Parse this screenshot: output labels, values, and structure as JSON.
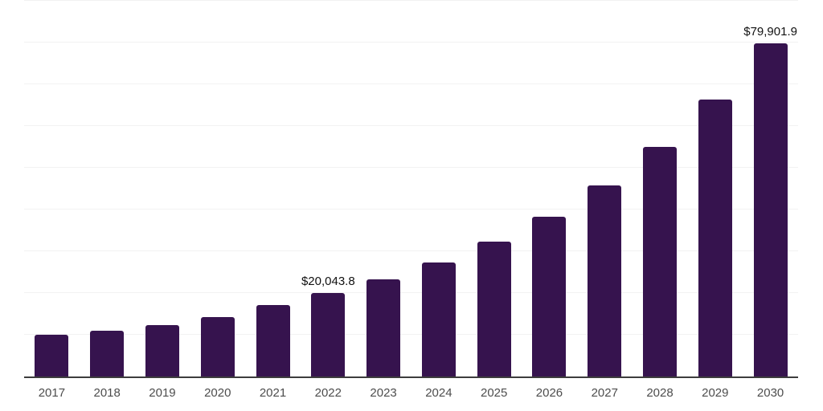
{
  "chart_data": {
    "type": "bar",
    "title": "",
    "xlabel": "",
    "ylabel": "",
    "categories": [
      "2017",
      "2018",
      "2019",
      "2020",
      "2021",
      "2022",
      "2023",
      "2024",
      "2025",
      "2026",
      "2027",
      "2028",
      "2029",
      "2030"
    ],
    "values": [
      10000,
      11000,
      12300,
      14200,
      17100,
      20043.8,
      23300,
      27300,
      32300,
      38300,
      45800,
      55000,
      66400,
      79901.9
    ],
    "value_labels": {
      "2022": "$20,043.8",
      "2030": "$79,901.9"
    },
    "ylim": [
      0,
      90000
    ],
    "gridline_step": 10000,
    "grid": "horizontal-only",
    "legend": "none",
    "y_tick_labels_visible": false,
    "colors": {
      "bar": "#36134e",
      "axis": "#3d3d3d",
      "gridline": "#f2f2f2",
      "tick_label": "#4d4d4d",
      "data_label": "#111111",
      "background": "#ffffff"
    }
  }
}
